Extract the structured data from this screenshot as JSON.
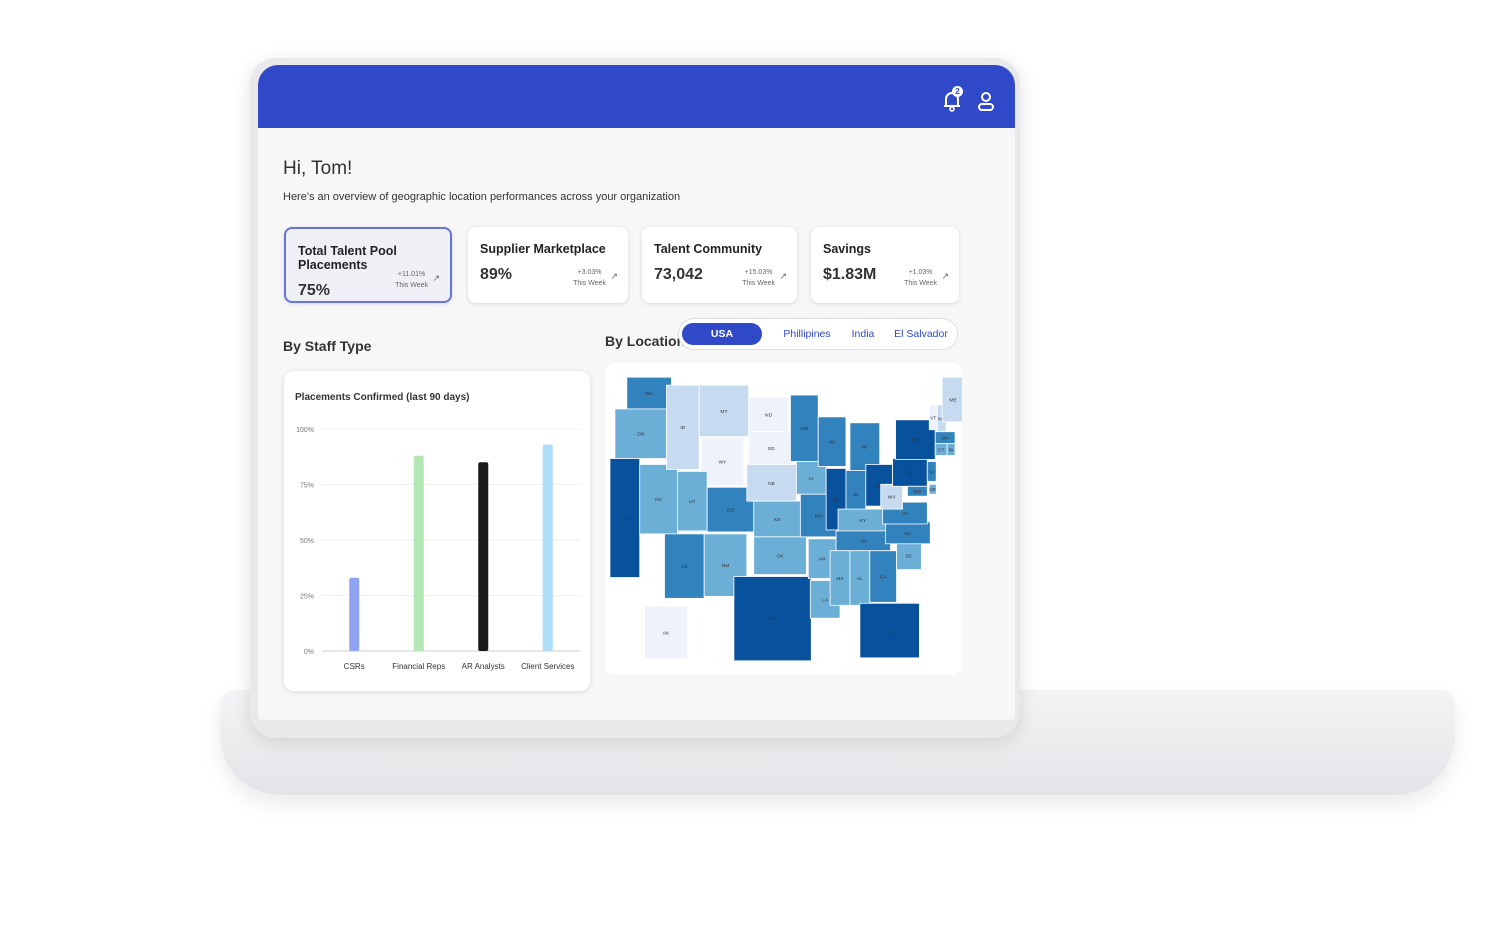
{
  "header": {
    "notification_count": "2",
    "icons": [
      "bell-icon",
      "user-icon"
    ]
  },
  "greeting": "Hi, Tom!",
  "subtitle": "Here's an overview of geographic location performances across your organization",
  "cards": [
    {
      "title": "Total Talent Pool Placements",
      "value": "75%",
      "delta": "+11.01%",
      "period": "This Week",
      "active": true
    },
    {
      "title": "Supplier Marketplace",
      "value": "89%",
      "delta": "+3.03%",
      "period": "This Week",
      "active": false
    },
    {
      "title": "Talent Community",
      "value": "73,042",
      "delta": "+15.03%",
      "period": "This Week",
      "active": false
    },
    {
      "title": "Savings",
      "value": "$1.83M",
      "delta": "+1.03%",
      "period": "This Week",
      "active": false
    }
  ],
  "staff_section": "By Staff Type",
  "location_section": "By Location",
  "location_tabs": [
    "USA",
    "Phillipines",
    "India",
    "El Salvador"
  ],
  "selected_location": "USA",
  "chart_data": {
    "type": "bar",
    "title": "Placements Confirmed (last 90 days)",
    "categories": [
      "CSRs",
      "Financial Reps",
      "AR Analysts",
      "Client Services"
    ],
    "values": [
      33,
      88,
      85,
      93
    ],
    "colors": [
      "#8fa3f5",
      "#b3e8b5",
      "#1a1a1a",
      "#aeddfa"
    ],
    "yticks": [
      "0%",
      "25%",
      "50%",
      "75%",
      "100%"
    ],
    "ylim": [
      0,
      100
    ],
    "grid": true
  },
  "map": {
    "colors": [
      "#eef2fb",
      "#c6dbef",
      "#6baed6",
      "#3182bd",
      "#08519c"
    ],
    "states": {
      "WA": 4,
      "OR": 3,
      "CA": 5,
      "NV": 3,
      "ID": 2,
      "MT": 2,
      "WY": 1,
      "UT": 3,
      "AZ": 4,
      "CO": 4,
      "NM": 3,
      "ND": 1,
      "SD": 1,
      "NE": 2,
      "KS": 3,
      "OK": 3,
      "TX": 5,
      "MN": 4,
      "IA": 3,
      "MO": 4,
      "AR": 3,
      "LA": 3,
      "WI": 4,
      "IL": 5,
      "MI": 4,
      "IN": 4,
      "OH": 5,
      "KY": 3,
      "TN": 4,
      "MS": 3,
      "AL": 3,
      "GA": 4,
      "FL": 5,
      "SC": 3,
      "NC": 4,
      "VA": 4,
      "WV": 2,
      "PA": 5,
      "NY": 5,
      "VT": 1,
      "NH": 2,
      "ME": 2,
      "MA": 4,
      "CT": 3,
      "RI": 3,
      "NJ": 4,
      "DE": 3,
      "MD": 4,
      "AK": 1
    }
  }
}
